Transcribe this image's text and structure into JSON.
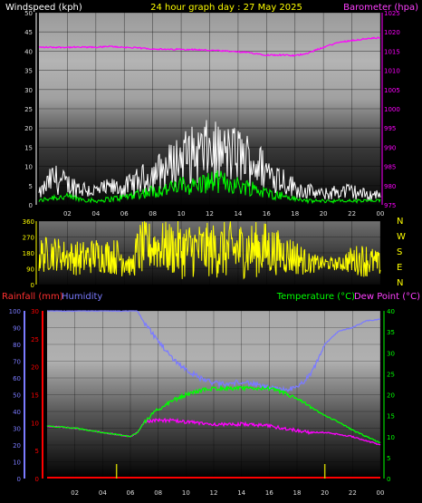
{
  "header": {
    "left": "Windspeed (kph)",
    "center": "24 hour graph day : 27 May 2025",
    "right": "Barometer (hpa)"
  },
  "bottom_header": {
    "rainfall": "Rainfall (mm)",
    "humidity": "Humidity",
    "temperature": "Temperature (°C)",
    "dewpoint": "Dew Point (°C)"
  },
  "colors": {
    "wind_gust": "#ffffff",
    "wind_avg": "#00ff00",
    "barometer": "#ff00ff",
    "direction": "#ffff00",
    "rainfall": "#ff0000",
    "humidity": "#7b7bff",
    "temperature": "#00ff00",
    "dewpoint": "#ff00ff",
    "rain_tick": "#c8c800"
  },
  "chart_data": [
    {
      "type": "line",
      "panel": "wind_barometer",
      "x_ticks": [
        "02",
        "04",
        "06",
        "08",
        "10",
        "12",
        "14",
        "16",
        "18",
        "20",
        "22",
        "00"
      ],
      "x_range_hours": [
        0,
        24
      ],
      "left_axis": {
        "label": "Windspeed (kph)",
        "ylim": [
          0,
          50
        ],
        "ticks": [
          "0",
          "5",
          "10",
          "15",
          "20",
          "25",
          "30",
          "35",
          "40",
          "45",
          "50"
        ]
      },
      "right_axis": {
        "label": "Barometer (hpa)",
        "ylim": [
          975,
          1025
        ],
        "ticks": [
          "975",
          "980",
          "985",
          "990",
          "995",
          "1000",
          "1005",
          "1010",
          "1015",
          "1020",
          "1025"
        ]
      },
      "series": [
        {
          "name": "Windspeed (kph)",
          "role": "gust",
          "hours": [
            0,
            1,
            2,
            3,
            4,
            5,
            6,
            7,
            8,
            9,
            10,
            11,
            12,
            13,
            14,
            15,
            16,
            17,
            18,
            19,
            20,
            21,
            22,
            23,
            24
          ],
          "values": [
            3,
            8,
            6,
            5,
            4,
            5,
            5,
            7,
            9,
            11,
            14,
            15,
            16,
            15,
            15,
            13,
            10,
            8,
            5,
            4,
            3,
            4,
            4,
            3,
            3
          ]
        },
        {
          "name": "",
          "role": "average",
          "hours": [
            0,
            1,
            2,
            3,
            4,
            5,
            6,
            7,
            8,
            9,
            10,
            11,
            12,
            13,
            14,
            15,
            16,
            17,
            18,
            19,
            20,
            21,
            22,
            23,
            24
          ],
          "values": [
            1,
            2,
            2,
            1.5,
            1,
            1.5,
            2,
            3,
            3.5,
            4,
            5,
            5,
            6,
            6,
            5,
            4.5,
            3,
            2.5,
            1.5,
            1,
            1,
            1,
            1,
            1,
            1
          ]
        },
        {
          "name": "Barometer (hpa)",
          "hours": [
            0,
            1,
            2,
            3,
            4,
            5,
            6,
            7,
            8,
            9,
            10,
            11,
            12,
            13,
            14,
            15,
            16,
            17,
            18,
            19,
            20,
            21,
            22,
            23,
            24
          ],
          "values": [
            1016,
            1016,
            1016,
            1016,
            1016,
            1016.2,
            1016,
            1015.8,
            1015.6,
            1015.4,
            1015.5,
            1015.4,
            1015.2,
            1015,
            1014.8,
            1014.5,
            1014,
            1014,
            1013.8,
            1014.6,
            1016,
            1017.2,
            1017.8,
            1018.2,
            1018.5
          ]
        }
      ]
    },
    {
      "type": "line",
      "panel": "wind_direction",
      "x_range_hours": [
        0,
        24
      ],
      "left_axis": {
        "ylim": [
          0,
          360
        ],
        "ticks": [
          "0",
          "90",
          "180",
          "270",
          "360"
        ]
      },
      "right_axis_labels": [
        "N",
        "W",
        "S",
        "E",
        "N"
      ],
      "series": [
        {
          "name": "",
          "role": "direction",
          "hours": [
            0,
            1,
            2,
            3,
            4,
            5,
            6,
            6.5,
            7,
            8,
            9,
            10,
            11,
            12,
            13,
            14,
            15,
            16,
            17,
            18,
            19,
            20,
            21,
            22,
            23,
            24
          ],
          "low": [
            60,
            80,
            70,
            40,
            70,
            60,
            40,
            50,
            40,
            80,
            60,
            30,
            40,
            40,
            30,
            30,
            40,
            40,
            60,
            50,
            60,
            80,
            80,
            60,
            40,
            50
          ],
          "high": [
            270,
            280,
            250,
            250,
            270,
            260,
            270,
            140,
            360,
            360,
            360,
            360,
            360,
            350,
            360,
            360,
            360,
            360,
            300,
            270,
            180,
            160,
            150,
            220,
            240,
            180
          ]
        }
      ]
    },
    {
      "type": "line",
      "panel": "temp_humidity_rain",
      "x_ticks": [
        "02",
        "04",
        "06",
        "08",
        "10",
        "12",
        "14",
        "16",
        "18",
        "20",
        "22",
        "00"
      ],
      "x_range_hours": [
        0,
        24
      ],
      "humidity_axis": {
        "ylim": [
          0,
          100
        ],
        "ticks": [
          "0",
          "10",
          "20",
          "30",
          "40",
          "50",
          "60",
          "70",
          "80",
          "90",
          "100"
        ]
      },
      "rainfall_axis": {
        "ylim": [
          0,
          30
        ],
        "ticks": [
          "0",
          "5",
          "10",
          "15",
          "20",
          "25",
          "30"
        ]
      },
      "temperature_axis": {
        "ylim": [
          0,
          40
        ],
        "ticks": [
          "0",
          "5",
          "10",
          "15",
          "20",
          "25",
          "30",
          "35",
          "40"
        ]
      },
      "rain_events_hours": [
        5,
        20
      ],
      "series": [
        {
          "name": "Humidity",
          "hours": [
            0,
            1,
            2,
            3,
            4,
            5,
            6,
            6.5,
            7,
            8,
            9,
            10,
            11,
            12,
            13,
            14,
            15,
            16,
            17,
            18,
            19,
            20,
            21,
            22,
            23,
            24
          ],
          "values": [
            100,
            100,
            100,
            100,
            100,
            100,
            100,
            100,
            93,
            82,
            72,
            65,
            60,
            57,
            56,
            58,
            56,
            54,
            53,
            54,
            62,
            80,
            88,
            90,
            94,
            95
          ]
        },
        {
          "name": "Temperature (°C)",
          "hours": [
            0,
            1,
            2,
            3,
            4,
            5,
            6,
            6.5,
            7,
            8,
            9,
            10,
            11,
            12,
            13,
            14,
            15,
            16,
            17,
            18,
            19,
            20,
            21,
            22,
            23,
            24
          ],
          "values": [
            12.5,
            12.3,
            12,
            11.5,
            11,
            10.5,
            10,
            11,
            13.5,
            16.5,
            18.5,
            20,
            21,
            21.5,
            21.5,
            21.5,
            21.5,
            21.5,
            20.5,
            19,
            17,
            15,
            13.5,
            11.5,
            10,
            8.5
          ]
        },
        {
          "name": "Dew Point (°C)",
          "hours": [
            0,
            1,
            2,
            3,
            4,
            5,
            6,
            6.5,
            7,
            8,
            9,
            10,
            11,
            12,
            13,
            14,
            15,
            16,
            17,
            18,
            19,
            20,
            21,
            22,
            23,
            24
          ],
          "values": [
            12.5,
            12.3,
            12,
            11.5,
            11,
            10.5,
            10,
            11,
            13.5,
            14,
            13.8,
            13.5,
            13.2,
            13,
            12.8,
            13,
            12.8,
            12.5,
            12,
            11.5,
            11,
            11,
            10.5,
            10,
            9,
            8
          ]
        },
        {
          "name": "Rainfall (mm)",
          "hours": [
            0,
            24
          ],
          "values": [
            0,
            0
          ]
        }
      ]
    }
  ]
}
